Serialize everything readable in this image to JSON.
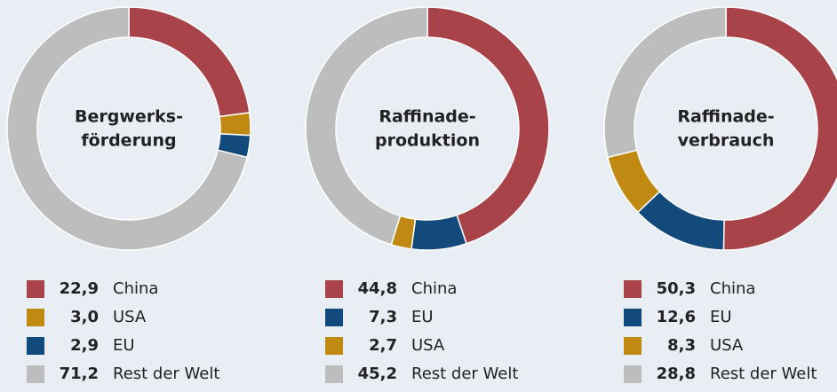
{
  "chart_data": [
    {
      "type": "pie",
      "title_lines": [
        "Bergwerks-",
        "förderung"
      ],
      "categories": [
        "China",
        "USA",
        "EU",
        "Rest der Welt"
      ],
      "values": [
        22.9,
        3.0,
        2.9,
        71.2
      ],
      "value_labels": [
        "22,9",
        "3,0",
        "2,9",
        "71,2"
      ],
      "colors": [
        "#a8434a",
        "#c08a12",
        "#134a7c",
        "#bdbdbd"
      ]
    },
    {
      "type": "pie",
      "title_lines": [
        "Raffinade-",
        "produktion"
      ],
      "categories": [
        "China",
        "EU",
        "USA",
        "Rest der Welt"
      ],
      "values": [
        44.8,
        7.3,
        2.7,
        45.2
      ],
      "value_labels": [
        "44,8",
        "7,3",
        "2,7",
        "45,2"
      ],
      "colors": [
        "#a8434a",
        "#134a7c",
        "#c08a12",
        "#bdbdbd"
      ]
    },
    {
      "type": "pie",
      "title_lines": [
        "Raffinade-",
        "verbrauch"
      ],
      "categories": [
        "China",
        "EU",
        "USA",
        "Rest der Welt"
      ],
      "values": [
        50.3,
        12.6,
        8.3,
        28.8
      ],
      "value_labels": [
        "50,3",
        "12,6",
        "8,3",
        "28,8"
      ],
      "colors": [
        "#a8434a",
        "#134a7c",
        "#c08a12",
        "#bdbdbd"
      ]
    }
  ]
}
